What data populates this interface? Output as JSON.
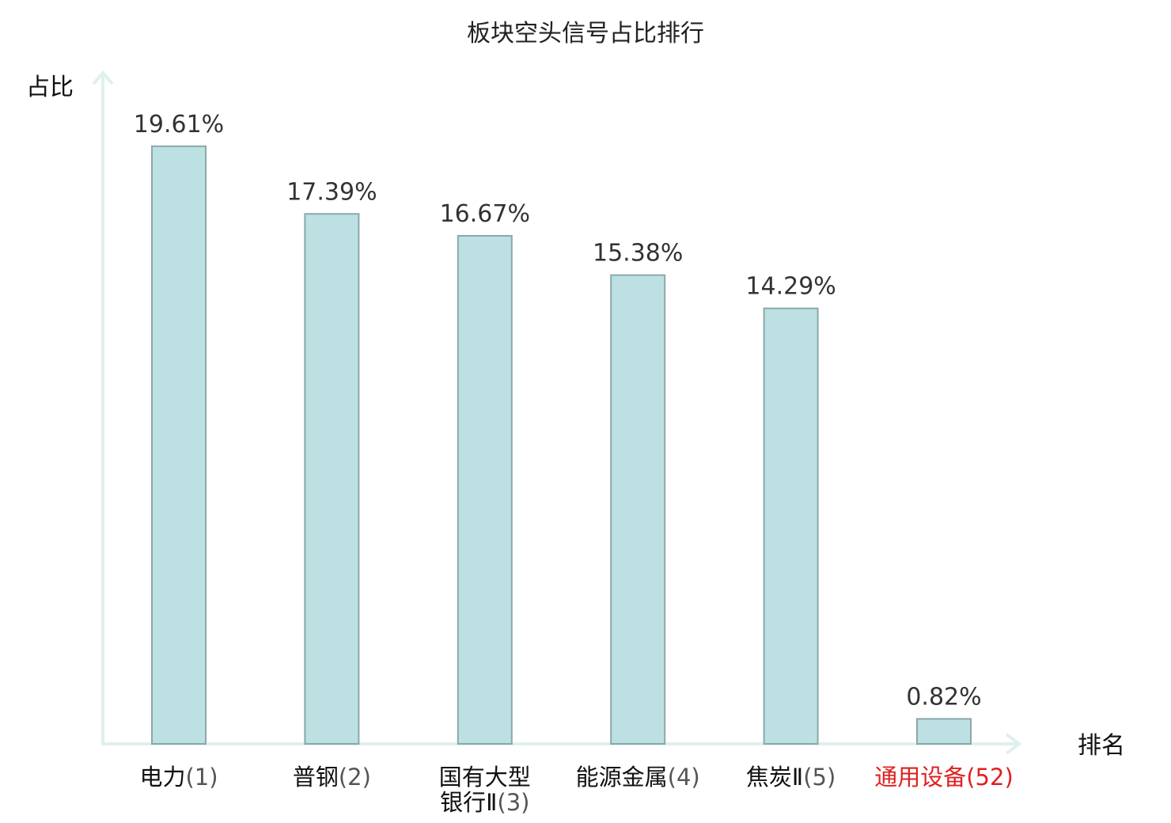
{
  "chart_data": {
    "type": "bar",
    "title": "板块空头信号占比排行",
    "ylabel": "占比",
    "xlabel": "排名",
    "ylim": [
      0,
      21.5
    ],
    "grid": false,
    "categories": [
      {
        "name": [
          "电力"
        ],
        "rank": "(1)",
        "highlight": false
      },
      {
        "name": [
          "普钢"
        ],
        "rank": "(2)",
        "highlight": false
      },
      {
        "name": [
          "国有大型",
          "银行Ⅱ"
        ],
        "rank": "(3)",
        "highlight": false
      },
      {
        "name": [
          "能源金属"
        ],
        "rank": "(4)",
        "highlight": false
      },
      {
        "name": [
          "焦炭Ⅱ"
        ],
        "rank": "(5)",
        "highlight": false
      },
      {
        "name": [
          "通用设备"
        ],
        "rank": "(52)",
        "highlight": true
      }
    ],
    "values": [
      19.61,
      17.39,
      16.67,
      15.38,
      14.29,
      0.82
    ],
    "value_labels": [
      "19.61%",
      "17.39%",
      "16.67%",
      "15.38%",
      "14.29%",
      "0.82%"
    ],
    "colors": {
      "bar_fill": "#bde0e3",
      "bar_stroke": "#8aa8a9",
      "axis": "#dff0ee",
      "highlight": "#e02020"
    }
  }
}
